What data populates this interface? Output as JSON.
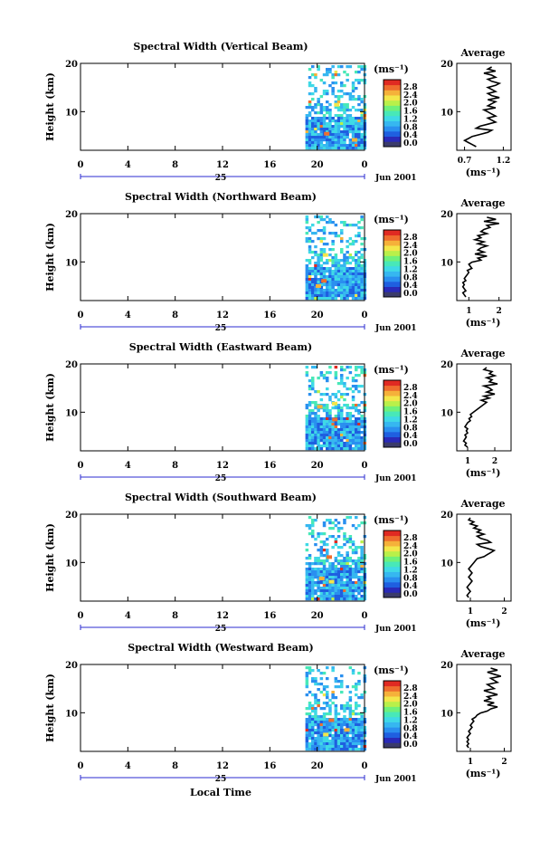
{
  "figure": {
    "xlabel": "Local Time",
    "cbar_unit": "(ms⁻¹)",
    "avg_xlabel": "(ms⁻¹)",
    "avg_title": "Average",
    "ylabel": "Height (km)",
    "date_label": "Jun 2001",
    "day_label": "25"
  },
  "chart_data": [
    {
      "type": "heatmap",
      "title": "Spectral Width (Vertical Beam)",
      "xlabel": "",
      "ylabel": "Height (km)",
      "x_ticks": [
        "0",
        "4",
        "8",
        "12",
        "16",
        "20",
        "0"
      ],
      "xlim_hours": [
        0,
        24
      ],
      "ylim_km": [
        2,
        20
      ],
      "y_ticks": [
        "20",
        "10"
      ],
      "data_start_hour": 19,
      "data_end_hour": 24,
      "colorbar": {
        "unit": "(ms⁻¹)",
        "ticks": [
          "2.8",
          "2.4",
          "2.0",
          "1.6",
          "1.2",
          "0.8",
          "0.4",
          "0.0"
        ],
        "range": [
          0.0,
          2.8
        ]
      },
      "profile": {
        "title": "Average",
        "xlabel": "(ms⁻¹)",
        "xticks": [
          "0.7",
          "1.2"
        ],
        "xlim": [
          0.6,
          1.3
        ],
        "yticks": [
          "20",
          "10"
        ],
        "values": [
          0.85,
          0.8,
          0.75,
          0.7,
          0.75,
          0.8,
          0.9,
          1.0,
          1.05,
          0.85,
          0.9,
          1.0,
          1.1,
          1.05,
          1.0,
          1.1,
          1.05,
          1.0,
          0.95,
          1.1,
          1.0,
          1.05,
          1.1,
          1.0,
          1.15,
          1.05,
          1.0,
          1.1,
          1.05,
          1.0,
          1.1,
          1.15,
          1.05,
          1.0,
          1.1,
          1.05,
          0.95,
          1.1,
          1.0,
          1.05
        ]
      }
    },
    {
      "type": "heatmap",
      "title": "Spectral Width (Northward Beam)",
      "xlabel": "",
      "ylabel": "Height (km)",
      "x_ticks": [
        "0",
        "4",
        "8",
        "12",
        "16",
        "20",
        "0"
      ],
      "xlim_hours": [
        0,
        24
      ],
      "ylim_km": [
        2,
        20
      ],
      "y_ticks": [
        "20",
        "10"
      ],
      "data_start_hour": 19,
      "data_end_hour": 24,
      "colorbar": {
        "unit": "(ms⁻¹)",
        "ticks": [
          "2.8",
          "2.4",
          "2.0",
          "1.6",
          "1.2",
          "0.8",
          "0.4",
          "0.0"
        ],
        "range": [
          0.0,
          2.8
        ]
      },
      "profile": {
        "title": "Average",
        "xlabel": "(ms⁻¹)",
        "xticks": [
          "1",
          "2"
        ],
        "xlim": [
          0.6,
          2.4
        ],
        "yticks": [
          "20",
          "10"
        ],
        "values": [
          0.9,
          0.85,
          0.8,
          0.9,
          0.85,
          0.8,
          0.85,
          0.8,
          0.9,
          0.85,
          0.9,
          0.95,
          1.0,
          0.95,
          1.1,
          1.05,
          1.0,
          1.1,
          1.4,
          1.3,
          1.6,
          1.2,
          1.5,
          1.3,
          1.4,
          1.6,
          1.3,
          1.5,
          1.2,
          1.4,
          1.3,
          1.6,
          1.4,
          1.5,
          1.7,
          1.6,
          2.0,
          1.5,
          1.9,
          1.6
        ]
      }
    },
    {
      "type": "heatmap",
      "title": "Spectral Width (Eastward Beam)",
      "xlabel": "",
      "ylabel": "Height (km)",
      "x_ticks": [
        "0",
        "4",
        "8",
        "12",
        "16",
        "20",
        "0"
      ],
      "xlim_hours": [
        0,
        24
      ],
      "ylim_km": [
        2,
        20
      ],
      "y_ticks": [
        "20",
        "10"
      ],
      "data_start_hour": 19,
      "data_end_hour": 24,
      "colorbar": {
        "unit": "(ms⁻¹)",
        "ticks": [
          "2.8",
          "2.4",
          "2.0",
          "1.6",
          "1.2",
          "0.8",
          "0.4",
          "0.0"
        ],
        "range": [
          0.0,
          2.8
        ]
      },
      "profile": {
        "title": "Average",
        "xlabel": "(ms⁻¹)",
        "xticks": [
          "1",
          "2"
        ],
        "xlim": [
          0.6,
          2.6
        ],
        "yticks": [
          "20",
          "10"
        ],
        "values": [
          1.0,
          0.9,
          0.95,
          0.85,
          0.9,
          0.95,
          0.9,
          1.0,
          0.95,
          1.0,
          0.9,
          0.95,
          1.0,
          1.1,
          1.05,
          1.15,
          1.1,
          1.2,
          1.3,
          1.4,
          1.5,
          1.6,
          1.7,
          1.5,
          1.8,
          1.6,
          2.0,
          1.7,
          1.9,
          1.8,
          1.6,
          2.1,
          1.8,
          1.9,
          1.7,
          2.0,
          1.8,
          1.9,
          1.6,
          1.7
        ]
      }
    },
    {
      "type": "heatmap",
      "title": "Spectral Width (Southward Beam)",
      "xlabel": "",
      "ylabel": "Height (km)",
      "x_ticks": [
        "0",
        "4",
        "8",
        "12",
        "16",
        "20",
        "0"
      ],
      "xlim_hours": [
        0,
        24
      ],
      "ylim_km": [
        2,
        20
      ],
      "y_ticks": [
        "20",
        "10"
      ],
      "data_start_hour": 19,
      "data_end_hour": 24,
      "colorbar": {
        "unit": "(ms⁻¹)",
        "ticks": [
          "2.8",
          "2.4",
          "2.0",
          "1.6",
          "1.2",
          "0.8",
          "0.4",
          "0.0"
        ],
        "range": [
          0.0,
          2.8
        ]
      },
      "profile": {
        "title": "Average",
        "xlabel": "(ms⁻¹)",
        "xticks": [
          "1",
          "2"
        ],
        "xlim": [
          0.6,
          2.2
        ],
        "yticks": [
          "20",
          "10"
        ],
        "values": [
          0.95,
          0.9,
          0.95,
          1.0,
          0.95,
          0.9,
          0.95,
          1.0,
          1.05,
          1.0,
          0.95,
          1.0,
          1.05,
          1.0,
          0.95,
          1.0,
          1.05,
          1.1,
          1.15,
          1.2,
          1.4,
          1.5,
          1.6,
          1.7,
          1.5,
          1.3,
          1.2,
          1.6,
          1.5,
          1.3,
          1.2,
          1.4,
          1.2,
          1.3,
          1.1,
          1.2,
          1.0,
          1.1,
          0.95,
          1.0
        ]
      }
    },
    {
      "type": "heatmap",
      "title": "Spectral Width (Westward Beam)",
      "xlabel": "Local Time",
      "ylabel": "Height (km)",
      "x_ticks": [
        "0",
        "4",
        "8",
        "12",
        "16",
        "20",
        "0"
      ],
      "xlim_hours": [
        0,
        24
      ],
      "ylim_km": [
        2,
        20
      ],
      "y_ticks": [
        "20",
        "10"
      ],
      "data_start_hour": 19,
      "data_end_hour": 24,
      "colorbar": {
        "unit": "(ms⁻¹)",
        "ticks": [
          "2.8",
          "2.4",
          "2.0",
          "1.6",
          "1.2",
          "0.8",
          "0.4",
          "0.0"
        ],
        "range": [
          0.0,
          2.8
        ]
      },
      "profile": {
        "title": "Average",
        "xlabel": "(ms⁻¹)",
        "xticks": [
          "1",
          "2"
        ],
        "xlim": [
          0.6,
          2.2
        ],
        "yticks": [
          "20",
          "10"
        ],
        "values": [
          0.95,
          0.9,
          0.95,
          0.9,
          0.95,
          0.9,
          0.95,
          1.0,
          0.95,
          1.0,
          1.05,
          1.0,
          1.05,
          1.1,
          1.05,
          1.15,
          1.2,
          1.3,
          1.5,
          1.6,
          1.8,
          1.5,
          1.7,
          1.4,
          1.6,
          1.5,
          1.8,
          1.6,
          1.4,
          1.7,
          1.6,
          1.5,
          1.8,
          1.7,
          1.6,
          1.9,
          1.7,
          1.5,
          1.8,
          1.6
        ]
      }
    }
  ],
  "colors": {
    "scale": [
      "#3b3b6b",
      "#2a2ab8",
      "#1f5fe0",
      "#2a8fef",
      "#36b7f0",
      "#3fd9e6",
      "#48e8b8",
      "#6ff07a",
      "#b9f04a",
      "#f3e64a",
      "#f5b13a",
      "#ef6d2e",
      "#e02a22"
    ],
    "axis": "#000000",
    "date_tick": "#2b2bd0"
  }
}
